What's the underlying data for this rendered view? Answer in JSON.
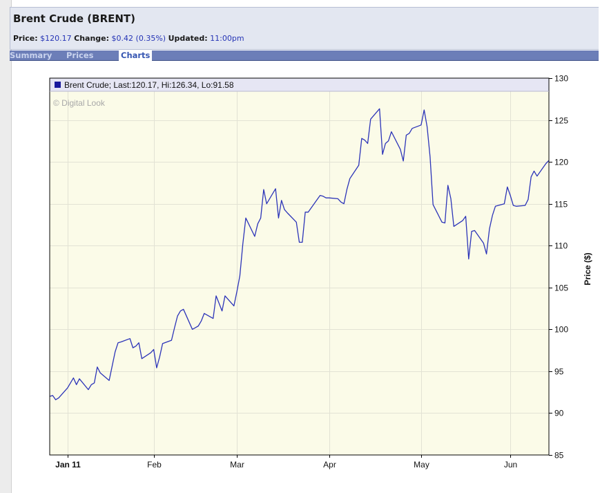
{
  "header": {
    "title": "Brent Crude (BRENT)",
    "price_label": "Price:",
    "price_value": "$120.17",
    "change_label": "Change:",
    "change_value": "$0.42 (0.35%)",
    "updated_label": "Updated:",
    "updated_value": "11:00pm"
  },
  "tabs": [
    {
      "label": "Summary",
      "active": false
    },
    {
      "label": "Prices",
      "active": false
    },
    {
      "label": "Charts",
      "active": true
    }
  ],
  "colors": {
    "line": "#2b33b8",
    "plot_background": "#fbfbe8",
    "legend_background": "#e6e6f4",
    "accent": "#2433b5"
  },
  "chart_data": {
    "type": "line",
    "legend": "Brent Crude; Last:120.17, Hi:126.34, Lo:91.58",
    "watermark": "© Digital Look",
    "ylabel": "Price ($)",
    "ylim": [
      85,
      130
    ],
    "yticks": [
      85,
      90,
      95,
      100,
      105,
      110,
      115,
      120,
      125,
      130
    ],
    "xlim": [
      "2010-12-28",
      "2011-06-14"
    ],
    "xticks": [
      {
        "date": "2011-01-03",
        "label": "Jan 11",
        "bold": true
      },
      {
        "date": "2011-02-01",
        "label": "Feb",
        "bold": false
      },
      {
        "date": "2011-03-01",
        "label": "Mar",
        "bold": false
      },
      {
        "date": "2011-04-01",
        "label": "Apr",
        "bold": false
      },
      {
        "date": "2011-05-02",
        "label": "May",
        "bold": false
      },
      {
        "date": "2011-06-01",
        "label": "Jun",
        "bold": false
      }
    ],
    "grid": true,
    "legend_position": "top-left",
    "series": [
      {
        "name": "Brent Crude",
        "x": [
          "2010-12-28",
          "2010-12-29",
          "2010-12-30",
          "2010-12-31",
          "2011-01-03",
          "2011-01-04",
          "2011-01-05",
          "2011-01-06",
          "2011-01-07",
          "2011-01-10",
          "2011-01-11",
          "2011-01-12",
          "2011-01-13",
          "2011-01-14",
          "2011-01-17",
          "2011-01-18",
          "2011-01-19",
          "2011-01-20",
          "2011-01-21",
          "2011-01-24",
          "2011-01-25",
          "2011-01-26",
          "2011-01-27",
          "2011-01-28",
          "2011-01-31",
          "2011-02-01",
          "2011-02-02",
          "2011-02-03",
          "2011-02-04",
          "2011-02-07",
          "2011-02-08",
          "2011-02-09",
          "2011-02-10",
          "2011-02-11",
          "2011-02-14",
          "2011-02-15",
          "2011-02-16",
          "2011-02-17",
          "2011-02-18",
          "2011-02-21",
          "2011-02-22",
          "2011-02-23",
          "2011-02-24",
          "2011-02-25",
          "2011-02-28",
          "2011-03-01",
          "2011-03-02",
          "2011-03-03",
          "2011-03-04",
          "2011-03-07",
          "2011-03-08",
          "2011-03-09",
          "2011-03-10",
          "2011-03-11",
          "2011-03-14",
          "2011-03-15",
          "2011-03-16",
          "2011-03-17",
          "2011-03-18",
          "2011-03-21",
          "2011-03-22",
          "2011-03-23",
          "2011-03-24",
          "2011-03-25",
          "2011-03-28",
          "2011-03-29",
          "2011-03-30",
          "2011-03-31",
          "2011-04-01",
          "2011-04-04",
          "2011-04-05",
          "2011-04-06",
          "2011-04-07",
          "2011-04-08",
          "2011-04-11",
          "2011-04-12",
          "2011-04-13",
          "2011-04-14",
          "2011-04-15",
          "2011-04-18",
          "2011-04-19",
          "2011-04-20",
          "2011-04-21",
          "2011-04-22",
          "2011-04-25",
          "2011-04-26",
          "2011-04-27",
          "2011-04-28",
          "2011-04-29",
          "2011-05-02",
          "2011-05-03",
          "2011-05-04",
          "2011-05-05",
          "2011-05-06",
          "2011-05-09",
          "2011-05-10",
          "2011-05-11",
          "2011-05-12",
          "2011-05-13",
          "2011-05-16",
          "2011-05-17",
          "2011-05-18",
          "2011-05-19",
          "2011-05-20",
          "2011-05-23",
          "2011-05-24",
          "2011-05-25",
          "2011-05-26",
          "2011-05-27",
          "2011-05-30",
          "2011-05-31",
          "2011-06-01",
          "2011-06-02",
          "2011-06-03",
          "2011-06-06",
          "2011-06-07",
          "2011-06-08",
          "2011-06-09",
          "2011-06-10",
          "2011-06-13",
          "2011-06-14"
        ],
        "y": [
          92.0,
          92.1,
          91.6,
          91.8,
          93.0,
          93.6,
          94.2,
          93.4,
          94.1,
          92.8,
          93.4,
          93.6,
          95.5,
          94.8,
          93.9,
          95.6,
          97.3,
          98.4,
          98.5,
          98.9,
          97.8,
          98.0,
          98.4,
          96.5,
          97.2,
          97.6,
          95.4,
          96.7,
          98.3,
          98.7,
          100.2,
          101.6,
          102.2,
          102.4,
          100.0,
          100.2,
          100.4,
          101.0,
          101.9,
          101.3,
          104.0,
          103.1,
          102.2,
          104.0,
          102.8,
          104.5,
          106.4,
          110.2,
          113.3,
          111.1,
          112.6,
          113.3,
          116.7,
          115.0,
          116.8,
          113.3,
          115.4,
          114.3,
          113.9,
          112.8,
          110.4,
          110.4,
          114.0,
          114.0,
          115.5,
          116.0,
          115.9,
          115.7,
          115.7,
          115.6,
          115.2,
          115.0,
          116.7,
          118.0,
          119.6,
          122.8,
          122.6,
          122.2,
          125.1,
          126.34,
          120.9,
          122.2,
          122.5,
          123.6,
          121.5,
          120.1,
          123.2,
          123.4,
          124.0,
          124.4,
          126.2,
          124.2,
          120.6,
          114.9,
          112.8,
          112.7,
          117.2,
          115.6,
          112.3,
          113.0,
          113.5,
          108.4,
          111.7,
          111.8,
          110.3,
          109.0,
          112.0,
          113.6,
          114.7,
          115.0,
          117.0,
          116.0,
          114.8,
          114.7,
          114.8,
          115.5,
          118.2,
          118.9,
          118.3,
          119.8,
          120.17
        ]
      }
    ]
  }
}
